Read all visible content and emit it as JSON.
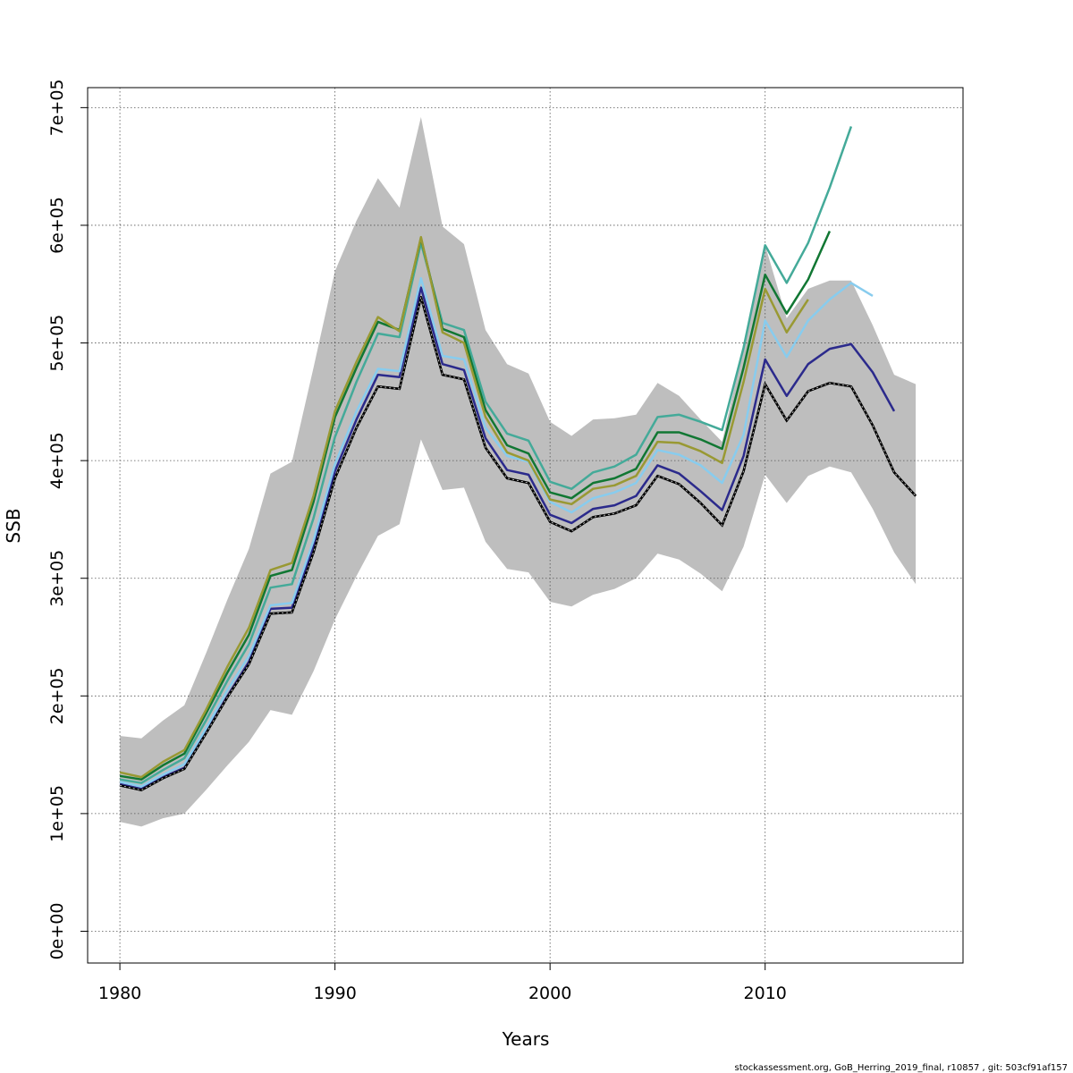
{
  "chart_data": {
    "type": "line",
    "title": "",
    "xlabel": "Years",
    "ylabel": "SSB",
    "xlim": [
      1978.5,
      2019.2
    ],
    "ylim": [
      -27000,
      717000
    ],
    "x_ticks": [
      1980,
      1990,
      2000,
      2010
    ],
    "x_tick_labels": [
      "1980",
      "1990",
      "2000",
      "2010"
    ],
    "y_ticks": [
      0,
      100000,
      200000,
      300000,
      400000,
      500000,
      600000,
      700000
    ],
    "y_tick_labels": [
      "0e+00",
      "1e+05",
      "2e+05",
      "3e+05",
      "4e+05",
      "5e+05",
      "6e+05",
      "7e+05"
    ],
    "grid": true,
    "legend": "none",
    "footnote": "stockassessment.org, GoB_Herring_2019_final, r10857 , git: 503cf91af157",
    "band": {
      "color": "#bebebe",
      "x": [
        1980,
        1981,
        1982,
        1983,
        1984,
        1985,
        1986,
        1987,
        1988,
        1989,
        1990,
        1991,
        1992,
        1993,
        1994,
        1995,
        1996,
        1997,
        1998,
        1999,
        2000,
        2001,
        2002,
        2003,
        2004,
        2005,
        2006,
        2007,
        2008,
        2009,
        2010,
        2011,
        2012,
        2013,
        2014,
        2015,
        2016,
        2017
      ],
      "upper": [
        166000,
        164000,
        179000,
        192000,
        236000,
        282000,
        325000,
        389000,
        399000,
        479000,
        561000,
        604000,
        640000,
        615000,
        692000,
        599000,
        584000,
        511000,
        482000,
        474000,
        433000,
        421000,
        435000,
        436000,
        439000,
        466000,
        455000,
        435000,
        416000,
        497000,
        583000,
        521000,
        546000,
        553000,
        553000,
        515000,
        473000,
        465000
      ],
      "lower": [
        93000,
        89000,
        96000,
        100000,
        120000,
        141000,
        161000,
        188000,
        184000,
        221000,
        265000,
        302000,
        336000,
        346000,
        418000,
        375000,
        377000,
        331000,
        308000,
        305000,
        280000,
        276000,
        286000,
        291000,
        300000,
        321000,
        316000,
        304000,
        289000,
        327000,
        388000,
        364000,
        387000,
        395000,
        390000,
        359000,
        322000,
        295000
      ]
    },
    "series": [
      {
        "color": "#000000",
        "dashed_overlay": true,
        "x": [
          1980,
          1981,
          1982,
          1983,
          1984,
          1985,
          1986,
          1987,
          1988,
          1989,
          1990,
          1991,
          1992,
          1993,
          1994,
          1995,
          1996,
          1997,
          1998,
          1999,
          2000,
          2001,
          2002,
          2003,
          2004,
          2005,
          2006,
          2007,
          2008,
          2009,
          2010,
          2011,
          2012,
          2013,
          2014,
          2015,
          2016,
          2017
        ],
        "values": [
          124000,
          120000,
          130000,
          138000,
          168000,
          199000,
          227000,
          270000,
          271000,
          322000,
          385000,
          428000,
          463000,
          461000,
          539000,
          473000,
          469000,
          411000,
          385000,
          381000,
          348000,
          340000,
          352000,
          355000,
          362000,
          387000,
          380000,
          364000,
          345000,
          391000,
          465000,
          434000,
          459000,
          466000,
          463000,
          430000,
          390000,
          370000
        ]
      },
      {
        "color": "#2b2a8c",
        "x": [
          1980,
          1981,
          1982,
          1983,
          1984,
          1985,
          1986,
          1987,
          1988,
          1989,
          1990,
          1991,
          1992,
          1993,
          1994,
          1995,
          1996,
          1997,
          1998,
          1999,
          2000,
          2001,
          2002,
          2003,
          2004,
          2005,
          2006,
          2007,
          2008,
          2009,
          2010,
          2011,
          2012,
          2013,
          2014,
          2015,
          2016
        ],
        "values": [
          125000,
          121000,
          131000,
          139000,
          169000,
          200000,
          229000,
          274000,
          275000,
          327000,
          391000,
          435000,
          473000,
          471000,
          547000,
          482000,
          477000,
          419000,
          392000,
          388000,
          354000,
          347000,
          359000,
          362000,
          370000,
          396000,
          389000,
          374000,
          358000,
          404000,
          486000,
          455000,
          482000,
          495000,
          499000,
          475000,
          442000
        ]
      },
      {
        "color": "#88ccee",
        "x": [
          1980,
          1981,
          1982,
          1983,
          1984,
          1985,
          1986,
          1987,
          1988,
          1989,
          1990,
          1991,
          1992,
          1993,
          1994,
          1995,
          1996,
          1997,
          1998,
          1999,
          2000,
          2001,
          2002,
          2003,
          2004,
          2005,
          2006,
          2007,
          2008,
          2009,
          2010,
          2011,
          2012,
          2013,
          2014,
          2015
        ],
        "values": [
          127000,
          123000,
          133000,
          142000,
          172000,
          205000,
          234000,
          277000,
          279000,
          332000,
          397000,
          442000,
          478000,
          476000,
          555000,
          489000,
          486000,
          428000,
          404000,
          399000,
          365000,
          356000,
          368000,
          373000,
          381000,
          409000,
          405000,
          396000,
          381000,
          422000,
          519000,
          488000,
          519000,
          537000,
          551000,
          540000
        ]
      },
      {
        "color": "#44aa99",
        "x": [
          1980,
          1981,
          1982,
          1983,
          1984,
          1985,
          1986,
          1987,
          1988,
          1989,
          1990,
          1991,
          1992,
          1993,
          1994,
          1995,
          1996,
          1997,
          1998,
          1999,
          2000,
          2001,
          2002,
          2003,
          2004,
          2005,
          2006,
          2007,
          2008,
          2009,
          2010,
          2011,
          2012,
          2013,
          2014
        ],
        "values": [
          129000,
          126000,
          137000,
          147000,
          179000,
          213000,
          244000,
          292000,
          295000,
          351000,
          420000,
          467000,
          508000,
          505000,
          585000,
          517000,
          511000,
          450000,
          423000,
          417000,
          382000,
          376000,
          390000,
          395000,
          405000,
          437000,
          439000,
          433000,
          426000,
          496000,
          583000,
          551000,
          585000,
          632000,
          684000
        ]
      },
      {
        "color": "#117733",
        "x": [
          1980,
          1981,
          1982,
          1983,
          1984,
          1985,
          1986,
          1987,
          1988,
          1989,
          1990,
          1991,
          1992,
          1993,
          1994,
          1995,
          1996,
          1997,
          1998,
          1999,
          2000,
          2001,
          2002,
          2003,
          2004,
          2005,
          2006,
          2007,
          2008,
          2009,
          2010,
          2011,
          2012,
          2013
        ],
        "values": [
          132000,
          129000,
          141000,
          151000,
          185000,
          220000,
          252000,
          302000,
          307000,
          365000,
          437000,
          479000,
          518000,
          511000,
          589000,
          512000,
          505000,
          443000,
          413000,
          406000,
          373000,
          368000,
          381000,
          385000,
          393000,
          424000,
          424000,
          418000,
          410000,
          479000,
          558000,
          525000,
          554000,
          595000
        ]
      },
      {
        "color": "#999933",
        "x": [
          1980,
          1981,
          1982,
          1983,
          1984,
          1985,
          1986,
          1987,
          1988,
          1989,
          1990,
          1991,
          1992,
          1993,
          1994,
          1995,
          1996,
          1997,
          1998,
          1999,
          2000,
          2001,
          2002,
          2003,
          2004,
          2005,
          2006,
          2007,
          2008,
          2009,
          2010,
          2011,
          2012
        ],
        "values": [
          135000,
          131000,
          144000,
          154000,
          188000,
          225000,
          258000,
          307000,
          313000,
          370000,
          442000,
          484000,
          522000,
          510000,
          590000,
          509000,
          500000,
          437000,
          407000,
          400000,
          367000,
          363000,
          376000,
          379000,
          387000,
          416000,
          415000,
          408000,
          398000,
          467000,
          546000,
          509000,
          537000
        ]
      }
    ]
  }
}
